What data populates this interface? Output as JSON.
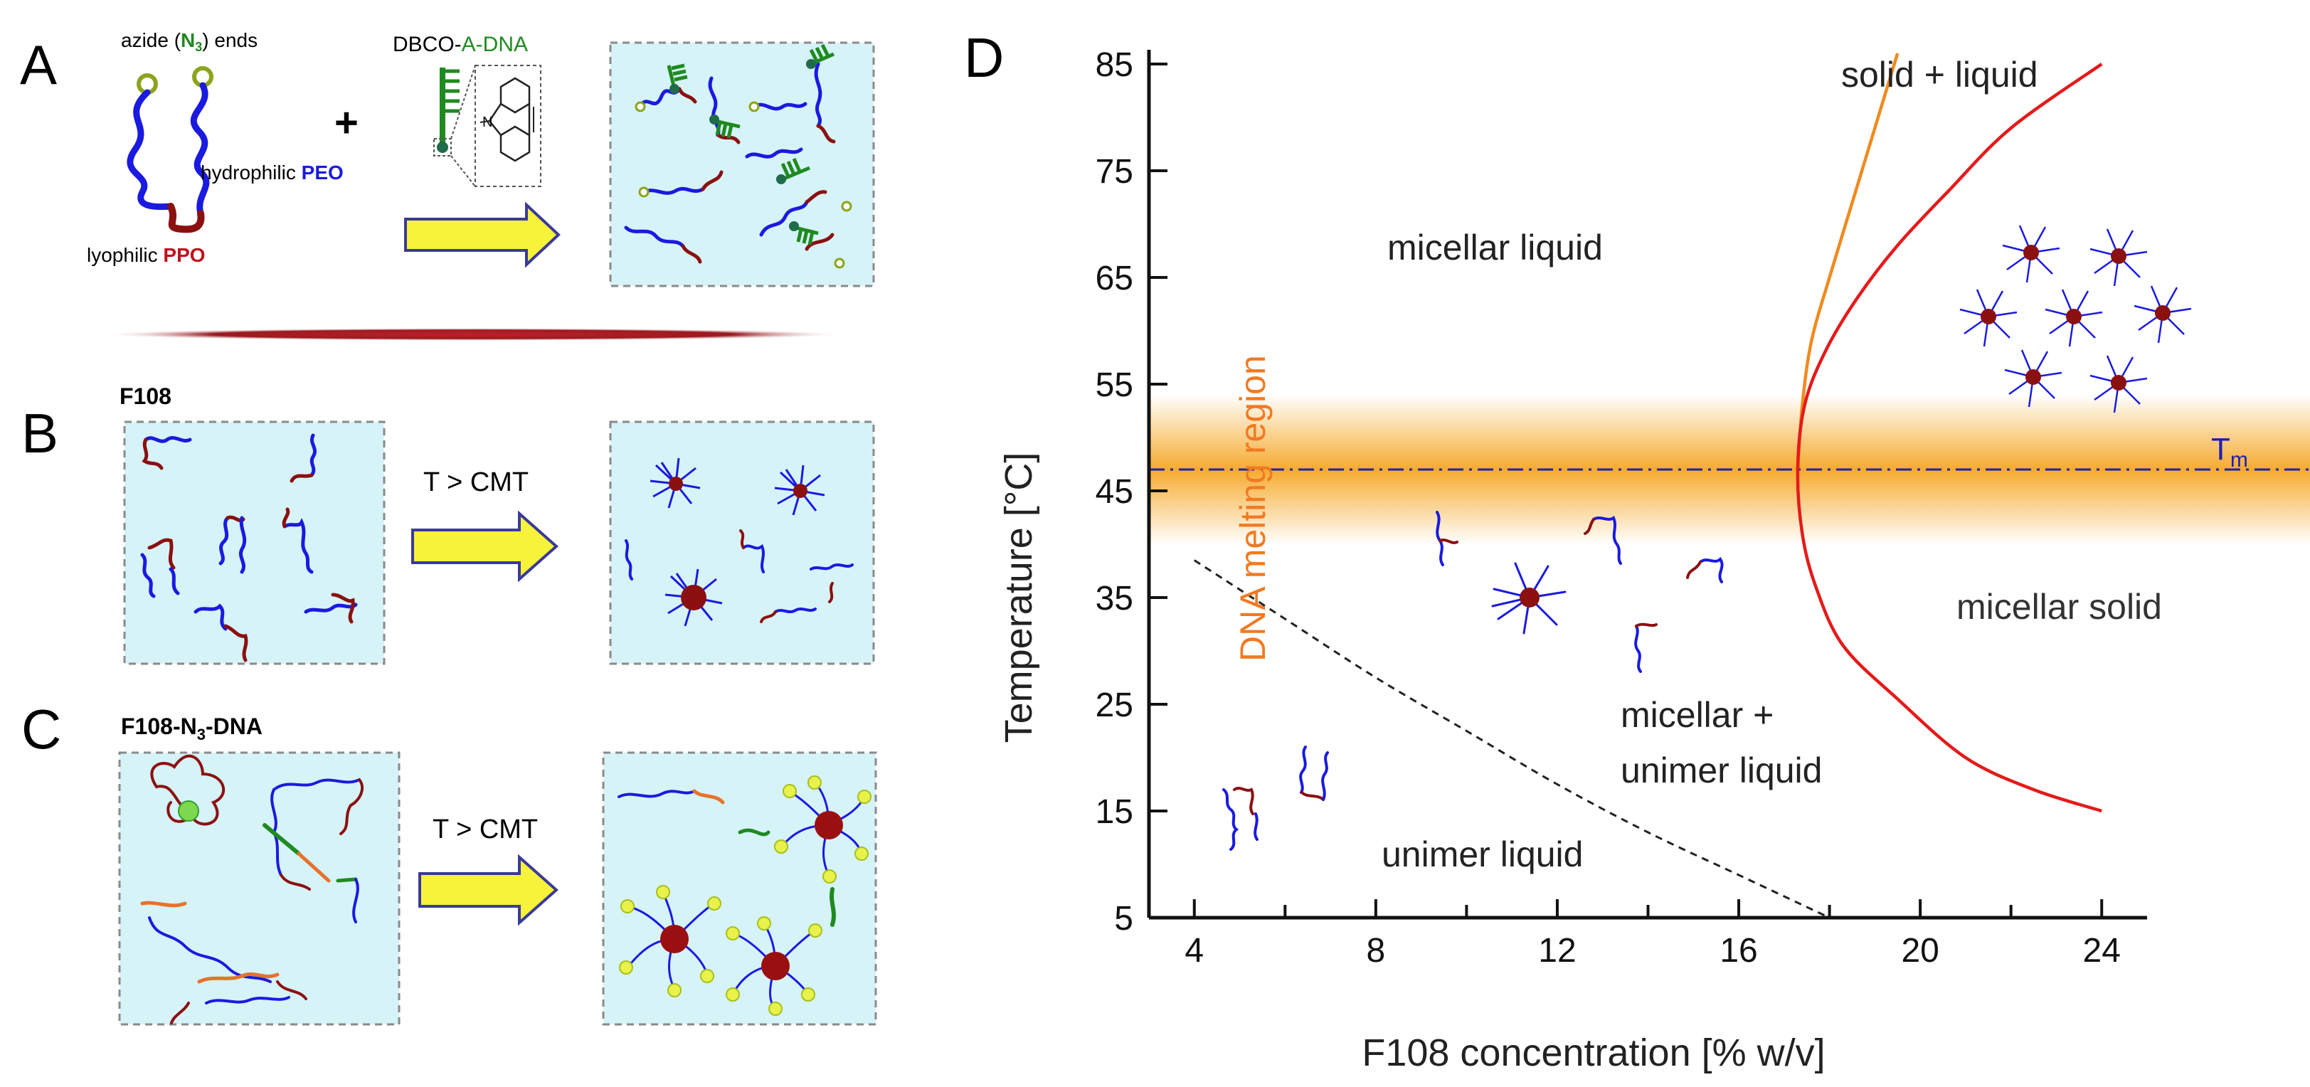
{
  "panel_labels": {
    "a": "A",
    "b": "B",
    "c": "C",
    "d": "D"
  },
  "panel_a": {
    "azide_pre": "azide (",
    "azide_n": "N",
    "azide_sub": "3",
    "azide_post": ") ends",
    "dbco_prefix": "DBCO-",
    "dbco_suffix": "A-DNA",
    "hydrophilic_prefix": "hydrophilic ",
    "hydrophilic_suffix": "PEO",
    "lyophilic_prefix": "lyophilic ",
    "lyophilic_suffix": "PPO",
    "plus": "+",
    "dbco_atom": "N"
  },
  "panel_b": {
    "title": "F108",
    "arrow_label": "T > CMT"
  },
  "panel_c": {
    "title_main": "F108-N",
    "title_sub": "3",
    "title_tail": "-DNA",
    "arrow_label": "T > CMT"
  },
  "colors": {
    "peo": "#1a1ae0",
    "ppo": "#8b1010",
    "dna": "#1f8a1f",
    "dbco": "#1f6b4a",
    "azide_ring": "#8aa51a",
    "box_fill": "#d6f3f8",
    "box_border": "#8a8a8a",
    "arrow_fill": "#f7f23a",
    "arrow_stroke": "#3a3a9a",
    "tm_line": "#1e1eb4",
    "band": "#f5a623",
    "boundary_solid": "#e51a1a",
    "boundary_liquid": "#f08a1e",
    "cmt_line": "#222222",
    "melting_text": "#f07a22"
  },
  "chart_data": {
    "type": "line",
    "xlabel": "F108 concentration [% w/v]",
    "ylabel": "Temperature [°C]",
    "xlim": [
      3,
      25
    ],
    "ylim": [
      5,
      85
    ],
    "xticks": [
      4,
      8,
      12,
      16,
      20,
      24
    ],
    "yticks": [
      5,
      15,
      25,
      35,
      45,
      55,
      65,
      75,
      85
    ],
    "grid": false,
    "series": [
      {
        "key": "cmt",
        "style": "dashed",
        "color": "#222222",
        "x": [
          4,
          6,
          8,
          10,
          12,
          14,
          16,
          18
        ],
        "y": [
          38.5,
          33,
          27.5,
          22.5,
          17.5,
          13,
          9,
          5
        ]
      },
      {
        "key": "liquid_boundary",
        "style": "solid",
        "color": "#f08a1e",
        "x": [
          17.3,
          17.4,
          17.6,
          18.0,
          18.5,
          19.0,
          19.5
        ],
        "y": [
          47,
          53,
          59,
          65,
          72,
          79,
          86
        ]
      },
      {
        "key": "solid_boundary",
        "style": "solid",
        "color": "#e51a1a",
        "x": [
          24,
          22.5,
          21,
          19.5,
          18.3,
          17.7,
          17.4,
          17.3,
          17.45,
          17.9,
          18.6,
          19.5,
          20.6,
          22,
          24
        ],
        "y": [
          15,
          17,
          20,
          25.5,
          30.5,
          36,
          41,
          47,
          53,
          58,
          63,
          68,
          73,
          79,
          85
        ]
      }
    ],
    "tm": {
      "value": 47,
      "label_main": "T",
      "label_sub": "m"
    },
    "melting_band": [
      40,
      54
    ],
    "region_labels": {
      "micellar_liquid": "micellar liquid",
      "solid_liquid": "solid + liquid",
      "micellar_solid": "micellar solid",
      "micellar_unimer_1": "micellar +",
      "micellar_unimer_2": "unimer liquid",
      "unimer_liquid": "unimer liquid",
      "melting": "DNA melting region"
    }
  }
}
